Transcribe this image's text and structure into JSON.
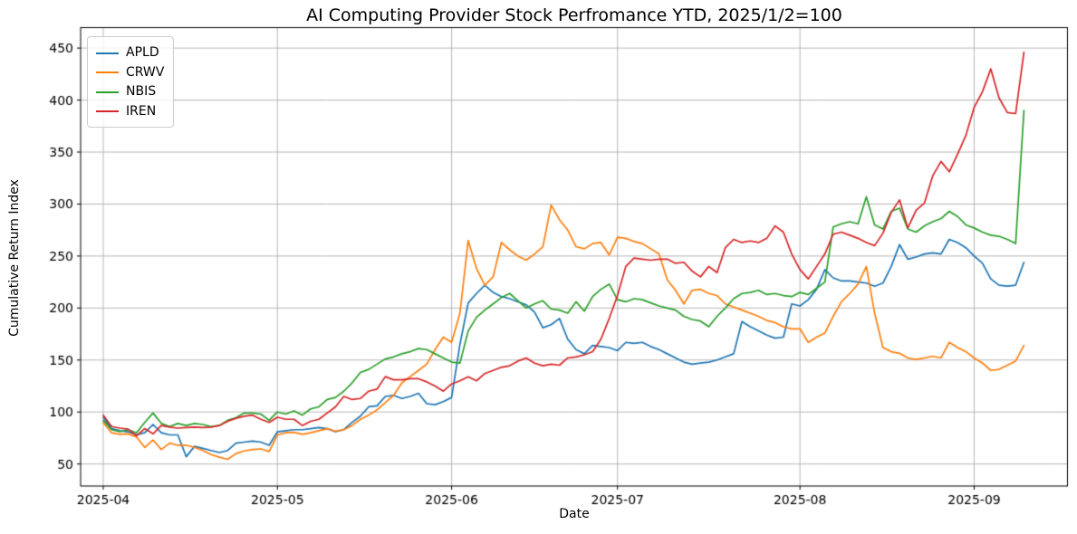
{
  "chart_data": {
    "type": "line",
    "title": "AI Computing Provider Stock Perfromance YTD, 2025/1/2=100",
    "xlabel": "Date",
    "ylabel": "Cumulative Return Index",
    "grid": true,
    "legend_position": "upper left",
    "xlim": [
      -2.73,
      116.25
    ],
    "ylim": [
      28.8,
      469.7
    ],
    "y_ticks": [
      50,
      100,
      150,
      200,
      250,
      300,
      350,
      400,
      450
    ],
    "x_ticks": {
      "labels": [
        "2025-04",
        "2025-05",
        "2025-06",
        "2025-07",
        "2025-08",
        "2025-09"
      ],
      "indices": [
        0,
        21,
        42,
        62,
        84,
        105
      ]
    },
    "x": [
      "2025-04-01",
      "2025-04-02",
      "2025-04-03",
      "2025-04-04",
      "2025-04-07",
      "2025-04-08",
      "2025-04-09",
      "2025-04-10",
      "2025-04-11",
      "2025-04-14",
      "2025-04-15",
      "2025-04-16",
      "2025-04-17",
      "2025-04-21",
      "2025-04-22",
      "2025-04-23",
      "2025-04-24",
      "2025-04-25",
      "2025-04-28",
      "2025-04-29",
      "2025-04-30",
      "2025-05-01",
      "2025-05-02",
      "2025-05-05",
      "2025-05-06",
      "2025-05-07",
      "2025-05-08",
      "2025-05-09",
      "2025-05-12",
      "2025-05-13",
      "2025-05-14",
      "2025-05-15",
      "2025-05-16",
      "2025-05-19",
      "2025-05-20",
      "2025-05-21",
      "2025-05-22",
      "2025-05-23",
      "2025-05-27",
      "2025-05-28",
      "2025-05-29",
      "2025-05-30",
      "2025-06-02",
      "2025-06-03",
      "2025-06-04",
      "2025-06-05",
      "2025-06-06",
      "2025-06-09",
      "2025-06-10",
      "2025-06-11",
      "2025-06-12",
      "2025-06-13",
      "2025-06-16",
      "2025-06-17",
      "2025-06-18",
      "2025-06-20",
      "2025-06-23",
      "2025-06-24",
      "2025-06-25",
      "2025-06-26",
      "2025-06-27",
      "2025-06-30",
      "2025-07-01",
      "2025-07-02",
      "2025-07-03",
      "2025-07-07",
      "2025-07-08",
      "2025-07-09",
      "2025-07-10",
      "2025-07-11",
      "2025-07-14",
      "2025-07-15",
      "2025-07-16",
      "2025-07-17",
      "2025-07-18",
      "2025-07-21",
      "2025-07-22",
      "2025-07-23",
      "2025-07-24",
      "2025-07-25",
      "2025-07-28",
      "2025-07-29",
      "2025-07-30",
      "2025-07-31",
      "2025-08-01",
      "2025-08-04",
      "2025-08-05",
      "2025-08-06",
      "2025-08-07",
      "2025-08-08",
      "2025-08-11",
      "2025-08-12",
      "2025-08-13",
      "2025-08-14",
      "2025-08-15",
      "2025-08-18",
      "2025-08-19",
      "2025-08-20",
      "2025-08-21",
      "2025-08-22",
      "2025-08-25",
      "2025-08-26",
      "2025-08-27",
      "2025-08-28",
      "2025-08-29",
      "2025-09-02",
      "2025-09-03",
      "2025-09-04",
      "2025-09-05",
      "2025-09-08",
      "2025-09-09",
      "2025-09-10"
    ],
    "series": [
      {
        "name": "APLD",
        "color": "#1f77b4",
        "values": [
          95,
          84,
          82,
          81,
          78,
          80,
          88,
          80,
          78,
          78,
          57,
          67,
          65,
          63,
          61,
          63,
          70,
          71,
          72,
          71,
          68,
          81,
          82,
          83,
          83,
          84,
          85,
          84,
          81,
          83,
          90,
          96,
          105,
          106,
          115,
          116,
          113,
          115,
          118,
          108,
          107,
          110,
          114,
          165,
          205,
          214,
          222,
          215,
          211,
          209,
          206,
          203,
          196,
          181,
          184,
          190,
          170,
          160,
          156,
          164,
          163,
          162,
          159,
          167,
          166,
          167,
          163,
          160,
          156,
          152,
          148,
          146,
          147,
          148,
          150,
          153,
          156,
          187,
          182,
          178,
          174,
          171,
          172,
          204,
          202,
          208,
          218,
          237,
          229,
          226,
          226,
          225,
          224,
          221,
          224,
          240,
          261,
          247,
          249,
          252,
          253,
          252,
          266,
          263,
          258,
          250,
          243,
          228,
          222,
          221,
          222,
          244
        ]
      },
      {
        "name": "CRWV",
        "color": "#ff7f0e",
        "values": [
          90,
          80,
          78.5,
          79,
          76,
          66,
          73,
          64,
          70,
          68,
          68,
          66,
          63,
          59,
          56.5,
          54.5,
          60,
          62.5,
          64,
          64.5,
          62,
          78,
          80,
          80.5,
          78.5,
          80,
          82,
          84,
          81.5,
          83,
          87,
          93,
          97,
          102,
          109,
          116,
          128,
          134,
          140,
          146,
          160,
          172,
          167,
          195,
          265,
          238,
          222,
          230,
          263,
          256,
          250,
          246,
          252,
          259,
          299,
          285,
          275,
          259,
          257,
          262,
          263,
          251,
          268,
          267,
          264,
          262,
          257,
          252,
          227,
          217,
          204,
          217,
          218,
          214,
          212,
          204,
          201,
          198,
          195,
          192,
          188,
          186,
          182,
          180,
          180,
          167,
          172,
          176,
          192,
          206,
          214,
          223,
          240,
          195,
          162,
          158,
          156.5,
          152,
          150.5,
          152,
          153.5,
          152,
          167,
          162,
          158,
          152,
          147,
          140,
          141,
          145,
          149,
          164
        ]
      },
      {
        "name": "NBIS",
        "color": "#2ca02c",
        "values": [
          92,
          83,
          81,
          83,
          80,
          90,
          99,
          89,
          86,
          89,
          87,
          89,
          88,
          86,
          87,
          92,
          94.5,
          99,
          99,
          98,
          92,
          100,
          98,
          101,
          97,
          103,
          105,
          112,
          114,
          120,
          128,
          138,
          141,
          146,
          151,
          153,
          156,
          158,
          161,
          160,
          156,
          152,
          148,
          147,
          178,
          191,
          198,
          204,
          210,
          214,
          207,
          200,
          204,
          207,
          199,
          198,
          195,
          206,
          197,
          211,
          218,
          223,
          208,
          206,
          209,
          208,
          205,
          202,
          200,
          198,
          192,
          189,
          187.5,
          182,
          192,
          200,
          209,
          214,
          215,
          217,
          213,
          214,
          212,
          211,
          215,
          213,
          219,
          225,
          278,
          281,
          283,
          281,
          307,
          280,
          276,
          293,
          296,
          276,
          273,
          279,
          283,
          286,
          293,
          288,
          280,
          277,
          273,
          270,
          269,
          266,
          262,
          390
        ]
      },
      {
        "name": "IREN",
        "color": "#d62728",
        "values": [
          97,
          86,
          84.5,
          83.5,
          77,
          84,
          79,
          87,
          85.5,
          84.5,
          85,
          85.5,
          85,
          85.5,
          87,
          91,
          94,
          96,
          97,
          93,
          90,
          95,
          93,
          93,
          87,
          91,
          93,
          99,
          105,
          115,
          112,
          113,
          120,
          122,
          134,
          131,
          131,
          132,
          132,
          129,
          125,
          120,
          127,
          130,
          134,
          130,
          137,
          140,
          143,
          144.5,
          149,
          152,
          147,
          144.5,
          146,
          145,
          152,
          153,
          155,
          158,
          170,
          190,
          212,
          240,
          248,
          247,
          246,
          247,
          247,
          243,
          244,
          235.5,
          230,
          240,
          234,
          258,
          266,
          263,
          264.5,
          263,
          267,
          279,
          273,
          252,
          237,
          228,
          240,
          252,
          271,
          273,
          270,
          267,
          263,
          260,
          272,
          292,
          304,
          277,
          294,
          301,
          327,
          341,
          331,
          348,
          366,
          393,
          408,
          430,
          402,
          388,
          387,
          446
        ]
      }
    ]
  }
}
